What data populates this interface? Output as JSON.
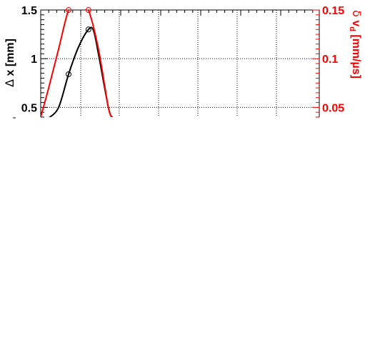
{
  "chart_data": {
    "type": "line",
    "grid": true,
    "x_axis": {
      "ticks_labeled": false
    },
    "y_left": {
      "label_parts": [
        "Δ",
        " x [mm]"
      ],
      "range": [
        0.4,
        1.5
      ],
      "ticks": [
        {
          "value": 0.5,
          "label": "0.5"
        },
        {
          "value": 1.0,
          "label": "1"
        },
        {
          "value": 1.5,
          "label": "1.5"
        }
      ],
      "color": "#000000"
    },
    "y_right": {
      "label_parts": [
        "δ",
        " v",
        "d",
        " [mm/µs]"
      ],
      "range": [
        0.04,
        0.15
      ],
      "ticks": [
        {
          "value": 0.05,
          "label": "0.05"
        },
        {
          "value": 0.1,
          "label": "0.1"
        },
        {
          "value": 0.15,
          "label": "0.15"
        }
      ],
      "color": "#ff0000"
    },
    "series": [
      {
        "axis": "left",
        "color": "#000000",
        "curve": [
          {
            "x": 0.0,
            "y": 0.39
          },
          {
            "x": 0.5,
            "y": 0.5
          },
          {
            "x": 1.0,
            "y": 0.84
          },
          {
            "x": 1.5,
            "y": 1.12
          },
          {
            "x": 2.0,
            "y": 1.3
          },
          {
            "x": 2.25,
            "y": 1.29
          },
          {
            "x": 2.5,
            "y": 1.05
          },
          {
            "x": 3.0,
            "y": 0.5
          },
          {
            "x": 3.2,
            "y": 0.39
          }
        ],
        "markers": [
          {
            "x": 1.0,
            "y": 0.84,
            "shape": "circle"
          },
          {
            "x": 2.0,
            "y": 1.3,
            "shape": "circle"
          }
        ]
      },
      {
        "axis": "right",
        "color": "#ff0000",
        "curve": [
          {
            "x": -0.4,
            "y": 0.04
          },
          {
            "x": 0.0,
            "y": 0.07
          },
          {
            "x": 0.5,
            "y": 0.11
          },
          {
            "x": 1.0,
            "y": 0.15
          },
          {
            "x": 1.5,
            "y": 0.165
          },
          {
            "x": 2.0,
            "y": 0.15
          },
          {
            "x": 2.5,
            "y": 0.11
          },
          {
            "x": 3.0,
            "y": 0.05
          },
          {
            "x": 3.2,
            "y": 0.04
          }
        ],
        "markers": [
          {
            "x": 1.0,
            "y": 0.15,
            "shape": "circle"
          },
          {
            "x": 2.0,
            "y": 0.15,
            "shape": "circle"
          }
        ]
      }
    ]
  }
}
